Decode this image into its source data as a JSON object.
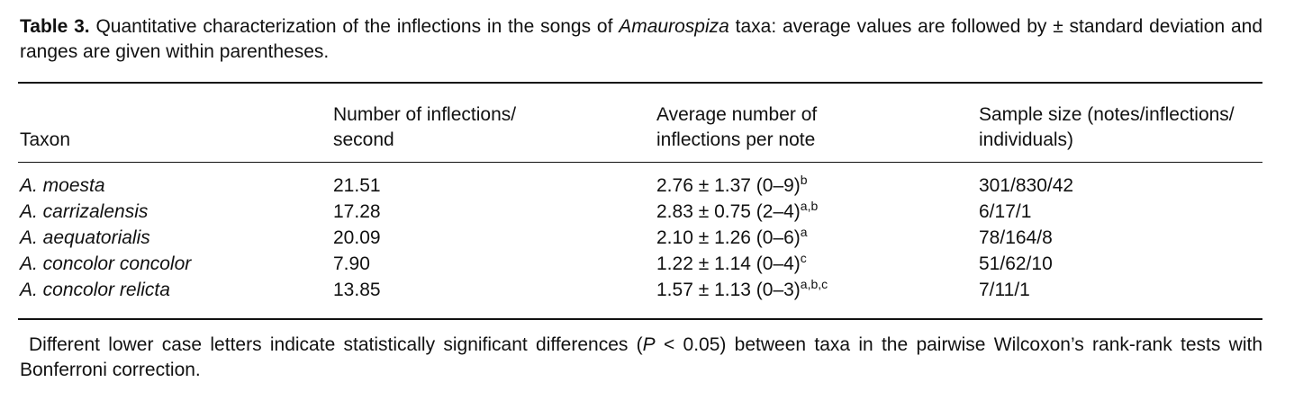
{
  "caption": {
    "label": "Table 3.",
    "text_before": " Quantitative characterization of the inflections in the songs of ",
    "genus": "Amaurospiza",
    "text_after": " taxa: average values are followed by ± standard deviation and ranges are given within parentheses."
  },
  "table": {
    "headers": [
      {
        "line1": "",
        "line2": "Taxon"
      },
      {
        "line1": "Number of inflections/",
        "line2": "second"
      },
      {
        "line1": "Average number of",
        "line2": "inflections per note"
      },
      {
        "line1": "Sample size (notes/inflections/",
        "line2": "individuals)"
      }
    ],
    "rows": [
      {
        "taxon": "A. moesta",
        "rate": "21.51",
        "avg": "2.76 ± 1.37 (0–9)",
        "sup": "b",
        "sample": "301/830/42"
      },
      {
        "taxon": "A. carrizalensis",
        "rate": "17.28",
        "avg": "2.83 ± 0.75 (2–4)",
        "sup": "a,b",
        "sample": "6/17/1"
      },
      {
        "taxon": "A. aequatorialis",
        "rate": "20.09",
        "avg": "2.10 ± 1.26 (0–6)",
        "sup": "a",
        "sample": "78/164/8"
      },
      {
        "taxon": "A. concolor concolor",
        "rate": "7.90",
        "avg": "1.22 ± 1.14 (0–4)",
        "sup": "c",
        "sample": "51/62/10"
      },
      {
        "taxon": "A. concolor relicta",
        "rate": "13.85",
        "avg": "1.57 ± 1.13 (0–3)",
        "sup": "a,b,c",
        "sample": "7/11/1"
      }
    ]
  },
  "footnote": {
    "before": "Different lower case letters indicate statistically significant differences (",
    "p": "P",
    "after": " < 0.05) between taxa in the pairwise Wilcoxon’s rank-rank tests with Bonferroni correction."
  }
}
